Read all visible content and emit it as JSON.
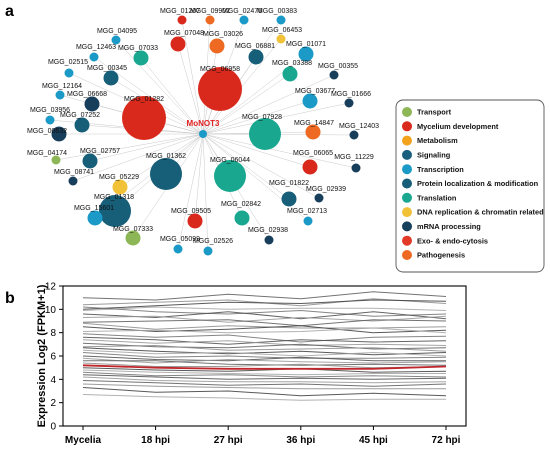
{
  "panels": {
    "a": "a",
    "b": "b"
  },
  "network": {
    "hub": "MoNOT3",
    "nodes": [
      {
        "label": "MGG_01207",
        "cat": "Mycelium development",
        "size": "s"
      },
      {
        "label": "MGG_09902",
        "cat": "Pathogenesis",
        "size": "s"
      },
      {
        "label": "MGG_02476",
        "cat": "Transcription",
        "size": "s"
      },
      {
        "label": "MGG_00383",
        "cat": "Transcription",
        "size": "s"
      },
      {
        "label": "MGG_04095",
        "cat": "Transcription",
        "size": "s"
      },
      {
        "label": "MGG_07048",
        "cat": "Mycelium development",
        "size": "m"
      },
      {
        "label": "MGG_03026",
        "cat": "Pathogenesis",
        "size": "m"
      },
      {
        "label": "MGG_06453",
        "cat": "DNA replication & chromatin related",
        "size": "s"
      },
      {
        "label": "MGG_12463",
        "cat": "Transcription",
        "size": "s"
      },
      {
        "label": "MGG_07033",
        "cat": "Translation",
        "size": "m"
      },
      {
        "label": "MGG_06881",
        "cat": "Protein localization & modification",
        "size": "m"
      },
      {
        "label": "MGG_01071",
        "cat": "Transcription",
        "size": "m"
      },
      {
        "label": "MGG_02515",
        "cat": "Transcription",
        "size": "s"
      },
      {
        "label": "MGG_00345",
        "cat": "Protein localization & modification",
        "size": "m"
      },
      {
        "label": "MGG_06958",
        "cat": "Mycelium development",
        "size": "xl"
      },
      {
        "label": "MGG_03388",
        "cat": "Translation",
        "size": "m"
      },
      {
        "label": "MGG_00355",
        "cat": "mRNA processing",
        "size": "s"
      },
      {
        "label": "MGG_12164",
        "cat": "Transcription",
        "size": "s"
      },
      {
        "label": "MGG_06668",
        "cat": "mRNA processing",
        "size": "m"
      },
      {
        "label": "MGG_01282",
        "cat": "Mycelium development",
        "size": "xl"
      },
      {
        "label": "MGG_03677",
        "cat": "Transcription",
        "size": "m"
      },
      {
        "label": "MGG_01666",
        "cat": "mRNA processing",
        "size": "s"
      },
      {
        "label": "MGG_03956",
        "cat": "Transcription",
        "size": "s"
      },
      {
        "label": "MGG_07252",
        "cat": "Protein localization & modification",
        "size": "m"
      },
      {
        "label": "MGG_07928",
        "cat": "Translation",
        "size": "l"
      },
      {
        "label": "MGG_14847",
        "cat": "Pathogenesis",
        "size": "m"
      },
      {
        "label": "MGG_12403",
        "cat": "mRNA processing",
        "size": "s"
      },
      {
        "label": "MGG_00632",
        "cat": "mRNA processing",
        "size": "m"
      },
      {
        "label": "MGG_04174",
        "cat": "Transport",
        "size": "s"
      },
      {
        "label": "MGG_02757",
        "cat": "Protein localization & modification",
        "size": "m"
      },
      {
        "label": "MGG_01362",
        "cat": "Protein localization & modification",
        "size": "l"
      },
      {
        "label": "MGG_06044",
        "cat": "Translation",
        "size": "l"
      },
      {
        "label": "MGG_06065",
        "cat": "Mycelium development",
        "size": "m"
      },
      {
        "label": "MGG_11229",
        "cat": "mRNA processing",
        "size": "s"
      },
      {
        "label": "MGG_08741",
        "cat": "mRNA processing",
        "size": "s"
      },
      {
        "label": "MGG_05229",
        "cat": "DNA replication & chromatin related",
        "size": "m"
      },
      {
        "label": "MGG_01822",
        "cat": "Protein localization & modification",
        "size": "m"
      },
      {
        "label": "MGG_02939",
        "cat": "mRNA processing",
        "size": "s"
      },
      {
        "label": "MGG_01318",
        "cat": "Protein localization & modification",
        "size": "l"
      },
      {
        "label": "MGG_15601",
        "cat": "Transcription",
        "size": "m"
      },
      {
        "label": "MGG_09505",
        "cat": "Mycelium development",
        "size": "m"
      },
      {
        "label": "MGG_02842",
        "cat": "Translation",
        "size": "m"
      },
      {
        "label": "MGG_02713",
        "cat": "Transcription",
        "size": "s"
      },
      {
        "label": "MGG_07333",
        "cat": "Transport",
        "size": "m"
      },
      {
        "label": "MGG_05099",
        "cat": "Transcription",
        "size": "s"
      },
      {
        "label": "MGG_02526",
        "cat": "Transcription",
        "size": "s"
      },
      {
        "label": "MGG_02938",
        "cat": "mRNA processing",
        "size": "s"
      }
    ]
  },
  "legend": [
    {
      "label": "Transport",
      "color": "#8db657"
    },
    {
      "label": "Mycelium  development",
      "color": "#d9291c"
    },
    {
      "label": "Metabolism",
      "color": "#f3a21c"
    },
    {
      "label": "Signaling",
      "color": "#1a5f7d"
    },
    {
      "label": "Transcription",
      "color": "#1b9ac7"
    },
    {
      "label": "Protein localization & modification",
      "color": "#175e79"
    },
    {
      "label": "Translation",
      "color": "#19a78f"
    },
    {
      "label": "DNA replication & chromatin related",
      "color": "#f1c237"
    },
    {
      "label": "mRNA processing",
      "color": "#173f5c"
    },
    {
      "label": "Exo- & endo-cytosis",
      "color": "#e23a26"
    },
    {
      "label": "Pathogenesis",
      "color": "#ee6a22"
    }
  ],
  "chart_data": {
    "type": "line",
    "ylabel": "Expression Log2 (FPKM+1)",
    "xlabel": "",
    "categories": [
      "Mycelia",
      "18 hpi",
      "27 hpi",
      "36 hpi",
      "45 hpi",
      "72 hpi"
    ],
    "ylim": [
      0,
      12
    ],
    "yticks": [
      0,
      2,
      4,
      6,
      8,
      10,
      12
    ],
    "grid": false,
    "highlight": {
      "values": [
        5.2,
        5.0,
        4.9,
        4.9,
        4.9,
        5.1
      ],
      "color": "#c0272d"
    },
    "series": [
      {
        "values": [
          11.0,
          10.8,
          11.3,
          10.9,
          11.5,
          11.1
        ]
      },
      {
        "values": [
          10.4,
          10.6,
          10.8,
          10.3,
          10.9,
          10.5
        ]
      },
      {
        "values": [
          10.0,
          10.3,
          10.6,
          10.5,
          10.8,
          10.7
        ]
      },
      {
        "values": [
          9.9,
          10.2,
          10.0,
          10.1,
          10.1,
          9.9
        ]
      },
      {
        "values": [
          10.2,
          9.8,
          9.6,
          9.9,
          9.4,
          9.6
        ]
      },
      {
        "values": [
          9.6,
          9.3,
          9.8,
          9.2,
          9.8,
          9.2
        ]
      },
      {
        "values": [
          9.3,
          9.4,
          8.9,
          9.3,
          9.0,
          9.4
        ]
      },
      {
        "values": [
          8.9,
          9.0,
          9.1,
          8.6,
          9.1,
          9.0
        ]
      },
      {
        "values": [
          8.8,
          8.3,
          8.6,
          8.4,
          8.4,
          8.5
        ]
      },
      {
        "values": [
          8.5,
          8.1,
          8.3,
          8.6,
          8.0,
          8.2
        ]
      },
      {
        "values": [
          8.1,
          8.2,
          8.0,
          8.1,
          8.4,
          8.0
        ]
      },
      {
        "values": [
          7.9,
          7.6,
          7.8,
          7.2,
          7.6,
          7.7
        ]
      },
      {
        "values": [
          7.6,
          7.4,
          7.0,
          7.4,
          7.2,
          7.3
        ]
      },
      {
        "values": [
          7.4,
          7.1,
          7.3,
          6.9,
          7.0,
          6.9
        ]
      },
      {
        "values": [
          7.1,
          6.8,
          6.7,
          7.0,
          6.6,
          6.7
        ]
      },
      {
        "values": [
          6.8,
          6.9,
          6.5,
          6.6,
          6.7,
          6.4
        ]
      },
      {
        "values": [
          6.7,
          6.4,
          6.2,
          6.4,
          6.1,
          6.3
        ]
      },
      {
        "values": [
          6.5,
          6.2,
          6.3,
          6.0,
          6.3,
          6.0
        ]
      },
      {
        "values": [
          6.3,
          5.9,
          6.0,
          5.8,
          5.8,
          5.9
        ]
      },
      {
        "values": [
          6.0,
          5.7,
          5.6,
          5.9,
          5.6,
          5.6
        ]
      },
      {
        "values": [
          5.8,
          5.4,
          5.7,
          5.5,
          5.4,
          5.5
        ]
      },
      {
        "values": [
          5.6,
          5.6,
          5.3,
          5.2,
          5.3,
          5.2
        ]
      },
      {
        "values": [
          5.4,
          5.1,
          5.1,
          5.3,
          5.0,
          5.1
        ]
      },
      {
        "values": [
          5.0,
          4.8,
          4.7,
          4.9,
          4.6,
          4.7
        ]
      },
      {
        "values": [
          4.8,
          4.6,
          4.5,
          4.4,
          4.5,
          4.5
        ]
      },
      {
        "values": [
          4.6,
          4.3,
          4.4,
          4.2,
          4.3,
          4.2
        ]
      },
      {
        "values": [
          4.4,
          4.2,
          4.0,
          4.1,
          4.0,
          4.1
        ]
      },
      {
        "values": [
          4.2,
          3.9,
          3.8,
          3.8,
          3.7,
          3.8
        ]
      },
      {
        "values": [
          3.9,
          3.7,
          3.5,
          3.6,
          3.4,
          3.6
        ]
      },
      {
        "values": [
          3.6,
          3.4,
          3.3,
          3.2,
          3.2,
          3.2
        ]
      },
      {
        "values": [
          3.3,
          2.9,
          3.0,
          2.6,
          2.8,
          2.6
        ]
      },
      {
        "values": [
          2.7,
          2.5,
          2.4,
          2.2,
          2.3,
          2.3
        ]
      }
    ]
  }
}
